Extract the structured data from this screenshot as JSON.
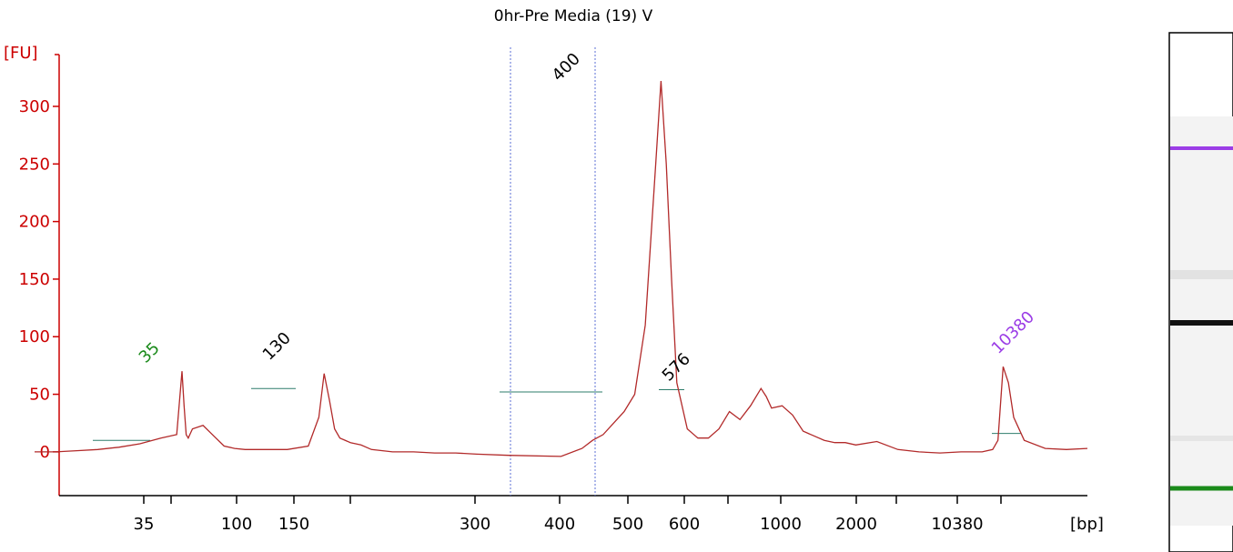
{
  "title": "0hr-Pre Media (19) V",
  "colors": {
    "axis": "#cc0000",
    "trace": "#b22a2a",
    "baseline": "#2e7d6b",
    "region_line": "#5b6fd6",
    "lower_marker": "#1a8a1a",
    "upper_marker": "#9b3de6"
  },
  "chart_data": {
    "type": "line",
    "title": "0hr-Pre Media (19) V",
    "ylabel": "[FU]",
    "xlabel": "[bp]",
    "ylim": [
      -38,
      345
    ],
    "yticks": [
      0,
      50,
      100,
      150,
      200,
      250,
      300
    ],
    "xticks": [
      "35",
      "",
      "100",
      "150",
      "",
      "300",
      "400",
      "500",
      "600",
      "",
      "1000",
      "2000",
      "",
      "10380",
      ""
    ],
    "grid": false,
    "peaks": [
      {
        "label": "35",
        "color": "lower_marker",
        "height": 70
      },
      {
        "label": "130",
        "color": "default",
        "height": 68
      },
      {
        "label": "400",
        "color": "default",
        "height": 322
      },
      {
        "label": "576",
        "color": "default",
        "height": 55
      },
      {
        "label": "10380",
        "color": "upper_marker",
        "height": 74
      }
    ],
    "region": {
      "from_bp": "343",
      "to_bp": "456"
    },
    "series": [
      {
        "x": [
          0.0,
          0.02,
          0.04,
          0.06,
          0.08,
          0.1,
          0.12,
          0.135,
          0.14,
          0.142,
          0.144,
          0.146,
          0.148,
          0.15,
          0.16,
          0.17,
          0.18,
          0.19,
          0.2,
          0.22,
          0.24,
          0.26,
          0.27,
          0.275,
          0.28,
          0.285,
          0.29,
          0.3,
          0.31,
          0.32,
          0.34,
          0.36,
          0.38,
          0.4,
          0.42,
          0.45,
          0.5,
          0.52,
          0.53,
          0.54,
          0.55,
          0.56,
          0.57,
          0.58,
          0.59,
          0.595,
          0.6,
          0.605,
          0.61,
          0.62,
          0.63,
          0.64,
          0.65,
          0.66,
          0.67,
          0.68,
          0.69,
          0.695,
          0.7,
          0.71,
          0.72,
          0.73,
          0.74,
          0.75,
          0.76,
          0.77,
          0.78,
          0.8,
          0.82,
          0.84,
          0.86,
          0.88,
          0.9,
          0.91,
          0.915,
          0.92,
          0.925,
          0.93,
          0.94,
          0.96,
          0.98,
          1.0
        ],
        "values": [
          0,
          0,
          1,
          2,
          4,
          7,
          12,
          15,
          70,
          40,
          15,
          12,
          16,
          20,
          23,
          14,
          5,
          3,
          2,
          2,
          2,
          5,
          30,
          68,
          45,
          20,
          12,
          8,
          6,
          2,
          0,
          0,
          -1,
          -1,
          -2,
          -3,
          -4,
          3,
          10,
          15,
          25,
          35,
          50,
          110,
          250,
          322,
          250,
          150,
          60,
          20,
          12,
          12,
          20,
          35,
          28,
          40,
          55,
          48,
          38,
          40,
          32,
          18,
          14,
          10,
          8,
          8,
          6,
          9,
          2,
          0,
          -1,
          0,
          0,
          2,
          10,
          74,
          60,
          30,
          10,
          3,
          2,
          3
        ]
      }
    ]
  },
  "gel": {
    "bands": [
      {
        "name": "upper-marker",
        "color": "#9b3de6",
        "intensity": 1.0
      },
      {
        "name": "faint",
        "color": "#bdbdbd",
        "intensity": 0.3
      },
      {
        "name": "main",
        "color": "#111111",
        "intensity": 1.0
      },
      {
        "name": "faint-low",
        "color": "#bdbdbd",
        "intensity": 0.25
      },
      {
        "name": "lower-marker",
        "color": "#1a8a1a",
        "intensity": 1.0
      }
    ]
  }
}
